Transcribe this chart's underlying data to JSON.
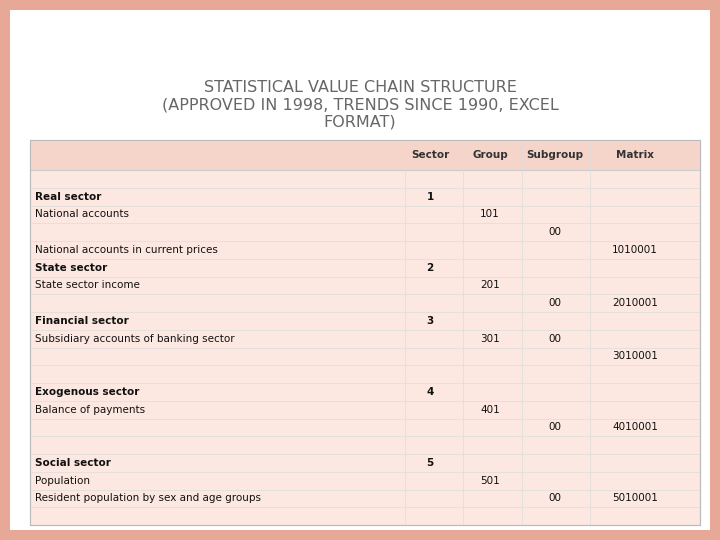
{
  "title": "STATISTICAL VALUE CHAIN STRUCTURE\n(APPROVED IN 1998, TRENDS SINCE 1990, EXCEL\nFORMAT)",
  "title_fontsize": 11.5,
  "title_color": "#666666",
  "outer_bg": "#e8a898",
  "inner_bg": "#ffffff",
  "table_bg": "#fce8e0",
  "header_bg": "#f5d5ca",
  "col_headers": [
    "Sector",
    "Group",
    "Subgroup",
    "Matrix"
  ],
  "rows": [
    {
      "label": "",
      "bold": false,
      "sector": "",
      "group": "",
      "subgroup": "",
      "matrix": ""
    },
    {
      "label": "Real sector",
      "bold": true,
      "sector": "1",
      "group": "",
      "subgroup": "",
      "matrix": ""
    },
    {
      "label": "National accounts",
      "bold": false,
      "sector": "",
      "group": "101",
      "subgroup": "",
      "matrix": ""
    },
    {
      "label": "",
      "bold": false,
      "sector": "",
      "group": "",
      "subgroup": "00",
      "matrix": ""
    },
    {
      "label": "National accounts in current prices",
      "bold": false,
      "sector": "",
      "group": "",
      "subgroup": "",
      "matrix": "1010001"
    },
    {
      "label": "State sector",
      "bold": true,
      "sector": "2",
      "group": "",
      "subgroup": "",
      "matrix": ""
    },
    {
      "label": "State sector income",
      "bold": false,
      "sector": "",
      "group": "201",
      "subgroup": "",
      "matrix": ""
    },
    {
      "label": "",
      "bold": false,
      "sector": "",
      "group": "",
      "subgroup": "00",
      "matrix": "2010001"
    },
    {
      "label": "Financial sector",
      "bold": true,
      "sector": "3",
      "group": "",
      "subgroup": "",
      "matrix": ""
    },
    {
      "label": "Subsidiary accounts of banking sector",
      "bold": false,
      "sector": "",
      "group": "301",
      "subgroup": "00",
      "matrix": ""
    },
    {
      "label": "",
      "bold": false,
      "sector": "",
      "group": "",
      "subgroup": "",
      "matrix": "3010001"
    },
    {
      "label": "",
      "bold": false,
      "sector": "",
      "group": "",
      "subgroup": "",
      "matrix": ""
    },
    {
      "label": "Exogenous sector",
      "bold": true,
      "sector": "4",
      "group": "",
      "subgroup": "",
      "matrix": ""
    },
    {
      "label": "Balance of payments",
      "bold": false,
      "sector": "",
      "group": "401",
      "subgroup": "",
      "matrix": ""
    },
    {
      "label": "",
      "bold": false,
      "sector": "",
      "group": "",
      "subgroup": "00",
      "matrix": "4010001"
    },
    {
      "label": "",
      "bold": false,
      "sector": "",
      "group": "",
      "subgroup": "",
      "matrix": ""
    },
    {
      "label": "Social sector",
      "bold": true,
      "sector": "5",
      "group": "",
      "subgroup": "",
      "matrix": ""
    },
    {
      "label": "Population",
      "bold": false,
      "sector": "",
      "group": "501",
      "subgroup": "",
      "matrix": ""
    },
    {
      "label": "Resident population by sex and age groups",
      "bold": false,
      "sector": "",
      "group": "",
      "subgroup": "00",
      "matrix": "5010001"
    },
    {
      "label": "",
      "bold": false,
      "sector": "",
      "group": "",
      "subgroup": "",
      "matrix": ""
    }
  ]
}
